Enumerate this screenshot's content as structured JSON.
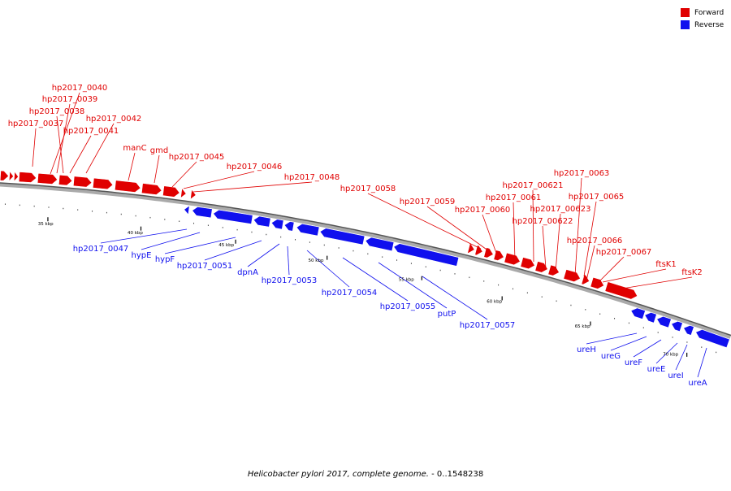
{
  "legend": {
    "forward_label": "Forward",
    "reverse_label": "Reverse",
    "forward_color": "#e00000",
    "reverse_color": "#1010ee"
  },
  "caption": {
    "organism": "Helicobacter pylori 2017, complete genome.",
    "range": " - 0..1548238"
  },
  "colors": {
    "forward": "#e00000",
    "reverse": "#1010ee",
    "backbone": "#777777"
  },
  "scale": {
    "labels": [
      "35 kbp",
      "40 kbp",
      "45 kbp",
      "50 kbp",
      "55 kbp",
      "60 kbp",
      "65 kbp",
      "70 kbp"
    ]
  },
  "forward_genes": [
    "hp2017_0040",
    "hp2017_0039",
    "hp2017_0038",
    "hp2017_0037",
    "hp2017_0042",
    "hp2017_0041",
    "manC",
    "gmd",
    "hp2017_0045",
    "hp2017_0046",
    "hp2017_0048",
    "hp2017_0058",
    "hp2017_0059",
    "hp2017_0060",
    "hp2017_0061",
    "hp2017_00621",
    "hp2017_00623",
    "hp2017_00622",
    "hp2017_0063",
    "hp2017_0065",
    "hp2017_0066",
    "hp2017_0067",
    "ftsK1",
    "ftsK2"
  ],
  "reverse_genes": [
    "hp2017_0047",
    "hypE",
    "hypF",
    "hp2017_0051",
    "dpnA",
    "hp2017_0053",
    "hp2017_0054",
    "hp2017_0055",
    "putP",
    "hp2017_0057",
    "ureH",
    "ureG",
    "ureF",
    "ureE",
    "ureI",
    "ureA"
  ]
}
